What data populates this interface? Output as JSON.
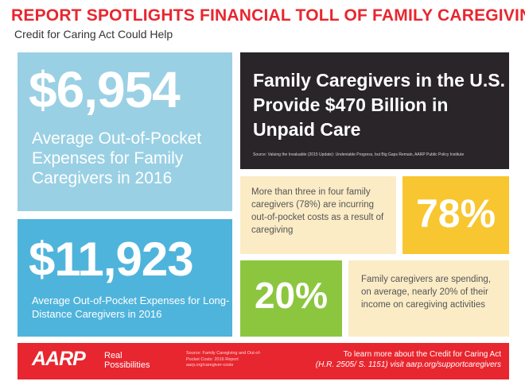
{
  "header": {
    "title": "REPORT SPOTLIGHTS FINANCIAL TOLL OF FAMILY CAREGIVING",
    "subtitle": "Credit for Caring Act Could Help"
  },
  "stat1": {
    "value": "$6,954",
    "description": "Average Out-of-Pocket Expenses for Family Caregivers in 2016",
    "color": "#9ad0e4"
  },
  "stat2": {
    "value": "$11,923",
    "description": "Average Out-of-Pocket Expenses for Long-Distance Caregivers in 2016",
    "color": "#4fb4dc"
  },
  "headline": {
    "text": "Family Caregivers in the U.S. Provide $470 Billion in Unpaid Care",
    "source": "Source: Valuing the Invaluable (2015 Update): Undeniable Progress, but Big Gaps Remain, AARP Public Policy Institute",
    "color": "#2a2528"
  },
  "stat3": {
    "description": "More than three in four family caregivers (78%) are incurring out-of-pocket costs as a result of caregiving",
    "value": "78%",
    "color": "#f8c630"
  },
  "stat4": {
    "value": "20%",
    "description": "Family caregivers are spending, on average, nearly 20% of their income on caregiving activities",
    "color": "#8cc63f"
  },
  "footer": {
    "logo": "AARP",
    "tagline": "Real Possibilities",
    "source": "Source: Family Caregiving and Out-of-Pocket Costs: 2016 Report aarp.org/caregiver-costs",
    "cta_line1": "To learn more about the Credit for Caring Act",
    "cta_line2": "(H.R. 2505/ S. 1151) visit aarp.org/supportcaregivers",
    "color": "#e8262f"
  }
}
